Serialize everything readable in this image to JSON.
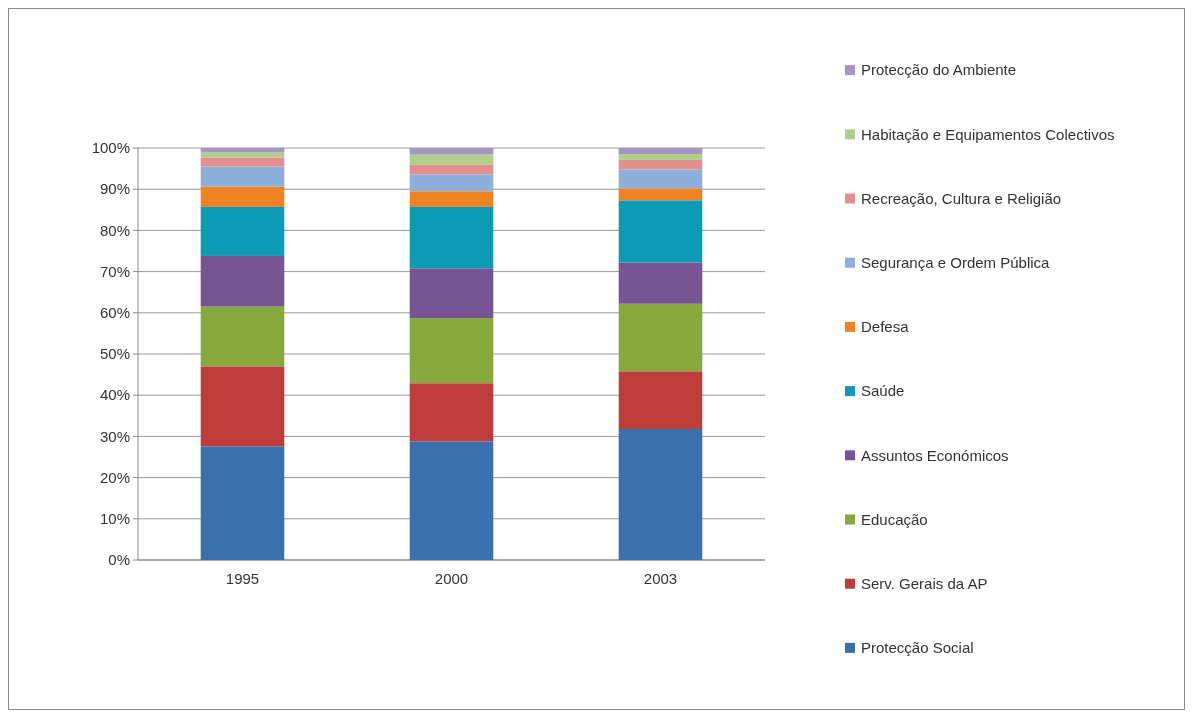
{
  "chart_data": {
    "type": "bar",
    "stacked": true,
    "categories": [
      "1995",
      "2000",
      "2003"
    ],
    "series": [
      {
        "name": "Protecção Social",
        "color": "#3a70ad",
        "values": [
          27.6,
          28.8,
          31.8
        ]
      },
      {
        "name": "Serv. Gerais da AP",
        "color": "#be3d3a",
        "values": [
          19.4,
          14.1,
          14.0
        ]
      },
      {
        "name": "Educação",
        "color": "#86a83d",
        "values": [
          14.5,
          15.8,
          16.4
        ]
      },
      {
        "name": "Assuntos Económicos",
        "color": "#775594",
        "values": [
          12.3,
          12.1,
          10.0
        ]
      },
      {
        "name": "Saúde",
        "color": "#0c9ab5",
        "values": [
          11.9,
          14.9,
          15.1
        ]
      },
      {
        "name": "Defesa",
        "color": "#ef8222",
        "values": [
          4.9,
          3.8,
          2.9
        ]
      },
      {
        "name": "Segurança e Ordem Pública",
        "color": "#8eaedc",
        "values": [
          4.9,
          4.1,
          4.6
        ]
      },
      {
        "name": "Recreação, Cultura e Religião",
        "color": "#e38f90",
        "values": [
          2.2,
          2.3,
          2.3
        ]
      },
      {
        "name": "Habitação e Equipamentos Colectivos",
        "color": "#b0cf8a",
        "values": [
          1.2,
          2.5,
          1.4
        ]
      },
      {
        "name": "Protecção do Ambiente",
        "color": "#a596c4",
        "values": [
          1.1,
          1.6,
          1.5
        ]
      }
    ],
    "ylim": [
      0,
      100
    ],
    "yticks": [
      {
        "value": 0,
        "label": "0%"
      },
      {
        "value": 10,
        "label": "10%"
      },
      {
        "value": 20,
        "label": "20%"
      },
      {
        "value": 30,
        "label": "30%"
      },
      {
        "value": 40,
        "label": "40%"
      },
      {
        "value": 50,
        "label": "50%"
      },
      {
        "value": 60,
        "label": "60%"
      },
      {
        "value": 70,
        "label": "70%"
      },
      {
        "value": 80,
        "label": "80%"
      },
      {
        "value": 90,
        "label": "90%"
      },
      {
        "value": 100,
        "label": "100%"
      }
    ],
    "grid": "y",
    "legend": "right"
  }
}
